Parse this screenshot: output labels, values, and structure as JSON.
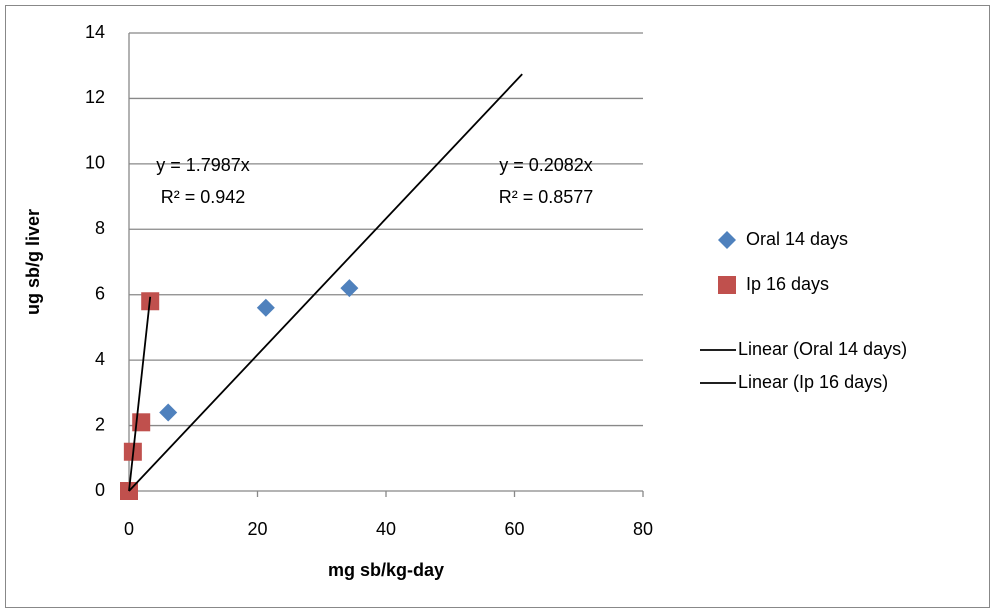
{
  "chart_data": {
    "type": "scatter",
    "x_label": "mg sb/kg-day",
    "y_label": "ug sb/g liver",
    "xlim": [
      0,
      80
    ],
    "xticks": [
      0,
      20,
      40,
      60,
      80
    ],
    "ylim": [
      0,
      14
    ],
    "yticks": [
      0,
      2,
      4,
      6,
      8,
      10,
      12,
      14
    ],
    "grid": true,
    "legend": "right",
    "series": [
      {
        "name": "Oral 14 days",
        "color": "#4f81bd",
        "marker": "diamond",
        "x": [
          6.1,
          21.3,
          34.3
        ],
        "values": [
          2.4,
          5.6,
          6.2
        ]
      },
      {
        "name": "Ip 16 days",
        "color": "#c0504d",
        "marker": "square",
        "x": [
          0,
          0.6,
          1.9,
          3.3
        ],
        "values": [
          0,
          1.2,
          2.1,
          5.8
        ]
      }
    ],
    "trendlines": [
      {
        "name": "Linear (Oral 14 days)",
        "color": "#000000",
        "slope": 0.2082,
        "xrange": [
          0,
          61.2
        ],
        "equation": "y = 0.2082x",
        "r2": "R² = 0.8577"
      },
      {
        "name": "Linear (Ip 16 days)",
        "color": "#000000",
        "slope": 1.7987,
        "xrange": [
          0,
          3.3
        ],
        "equation": "y = 1.7987x",
        "r2": "R² = 0.942"
      }
    ]
  }
}
